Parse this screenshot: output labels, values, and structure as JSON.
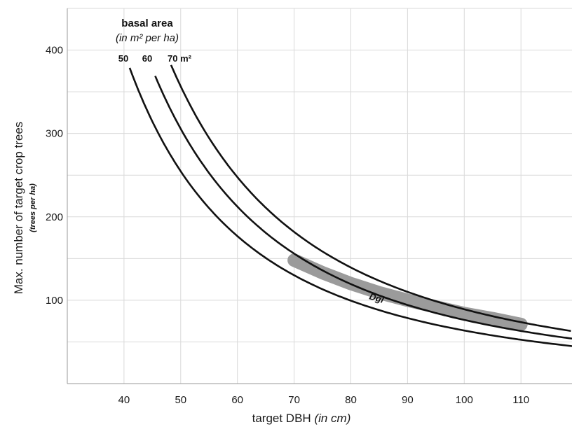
{
  "chart_data": {
    "type": "line",
    "xlabel": "target DBH",
    "xlabel_unit": "(in cm)",
    "ylabel": "Max. number of target crop trees",
    "ylabel_unit": "(trees per ha)",
    "xlim": [
      30,
      119
    ],
    "ylim": [
      0,
      450
    ],
    "x_ticks": [
      40,
      50,
      60,
      70,
      80,
      90,
      100,
      110
    ],
    "y_ticks": [
      100,
      200,
      300,
      400
    ],
    "grid": true,
    "series": [
      {
        "name": "50",
        "basal_area_m2": 50,
        "x_start": 41
      },
      {
        "name": "60",
        "basal_area_m2": 60,
        "x_start": 45.5
      },
      {
        "name": "70 m²",
        "basal_area_m2": 70,
        "x_start": 48.3
      }
    ],
    "annotation": {
      "title": "basal area",
      "subtitle": "(in m² per ha)"
    },
    "band": {
      "label": "Dgl",
      "color": "#9b9b9b",
      "points": [
        [
          70,
          148
        ],
        [
          75,
          133
        ],
        [
          80,
          120
        ],
        [
          85,
          109
        ],
        [
          90,
          100
        ],
        [
          95,
          92
        ],
        [
          100,
          84
        ],
        [
          105,
          78
        ],
        [
          110,
          71
        ]
      ]
    }
  }
}
